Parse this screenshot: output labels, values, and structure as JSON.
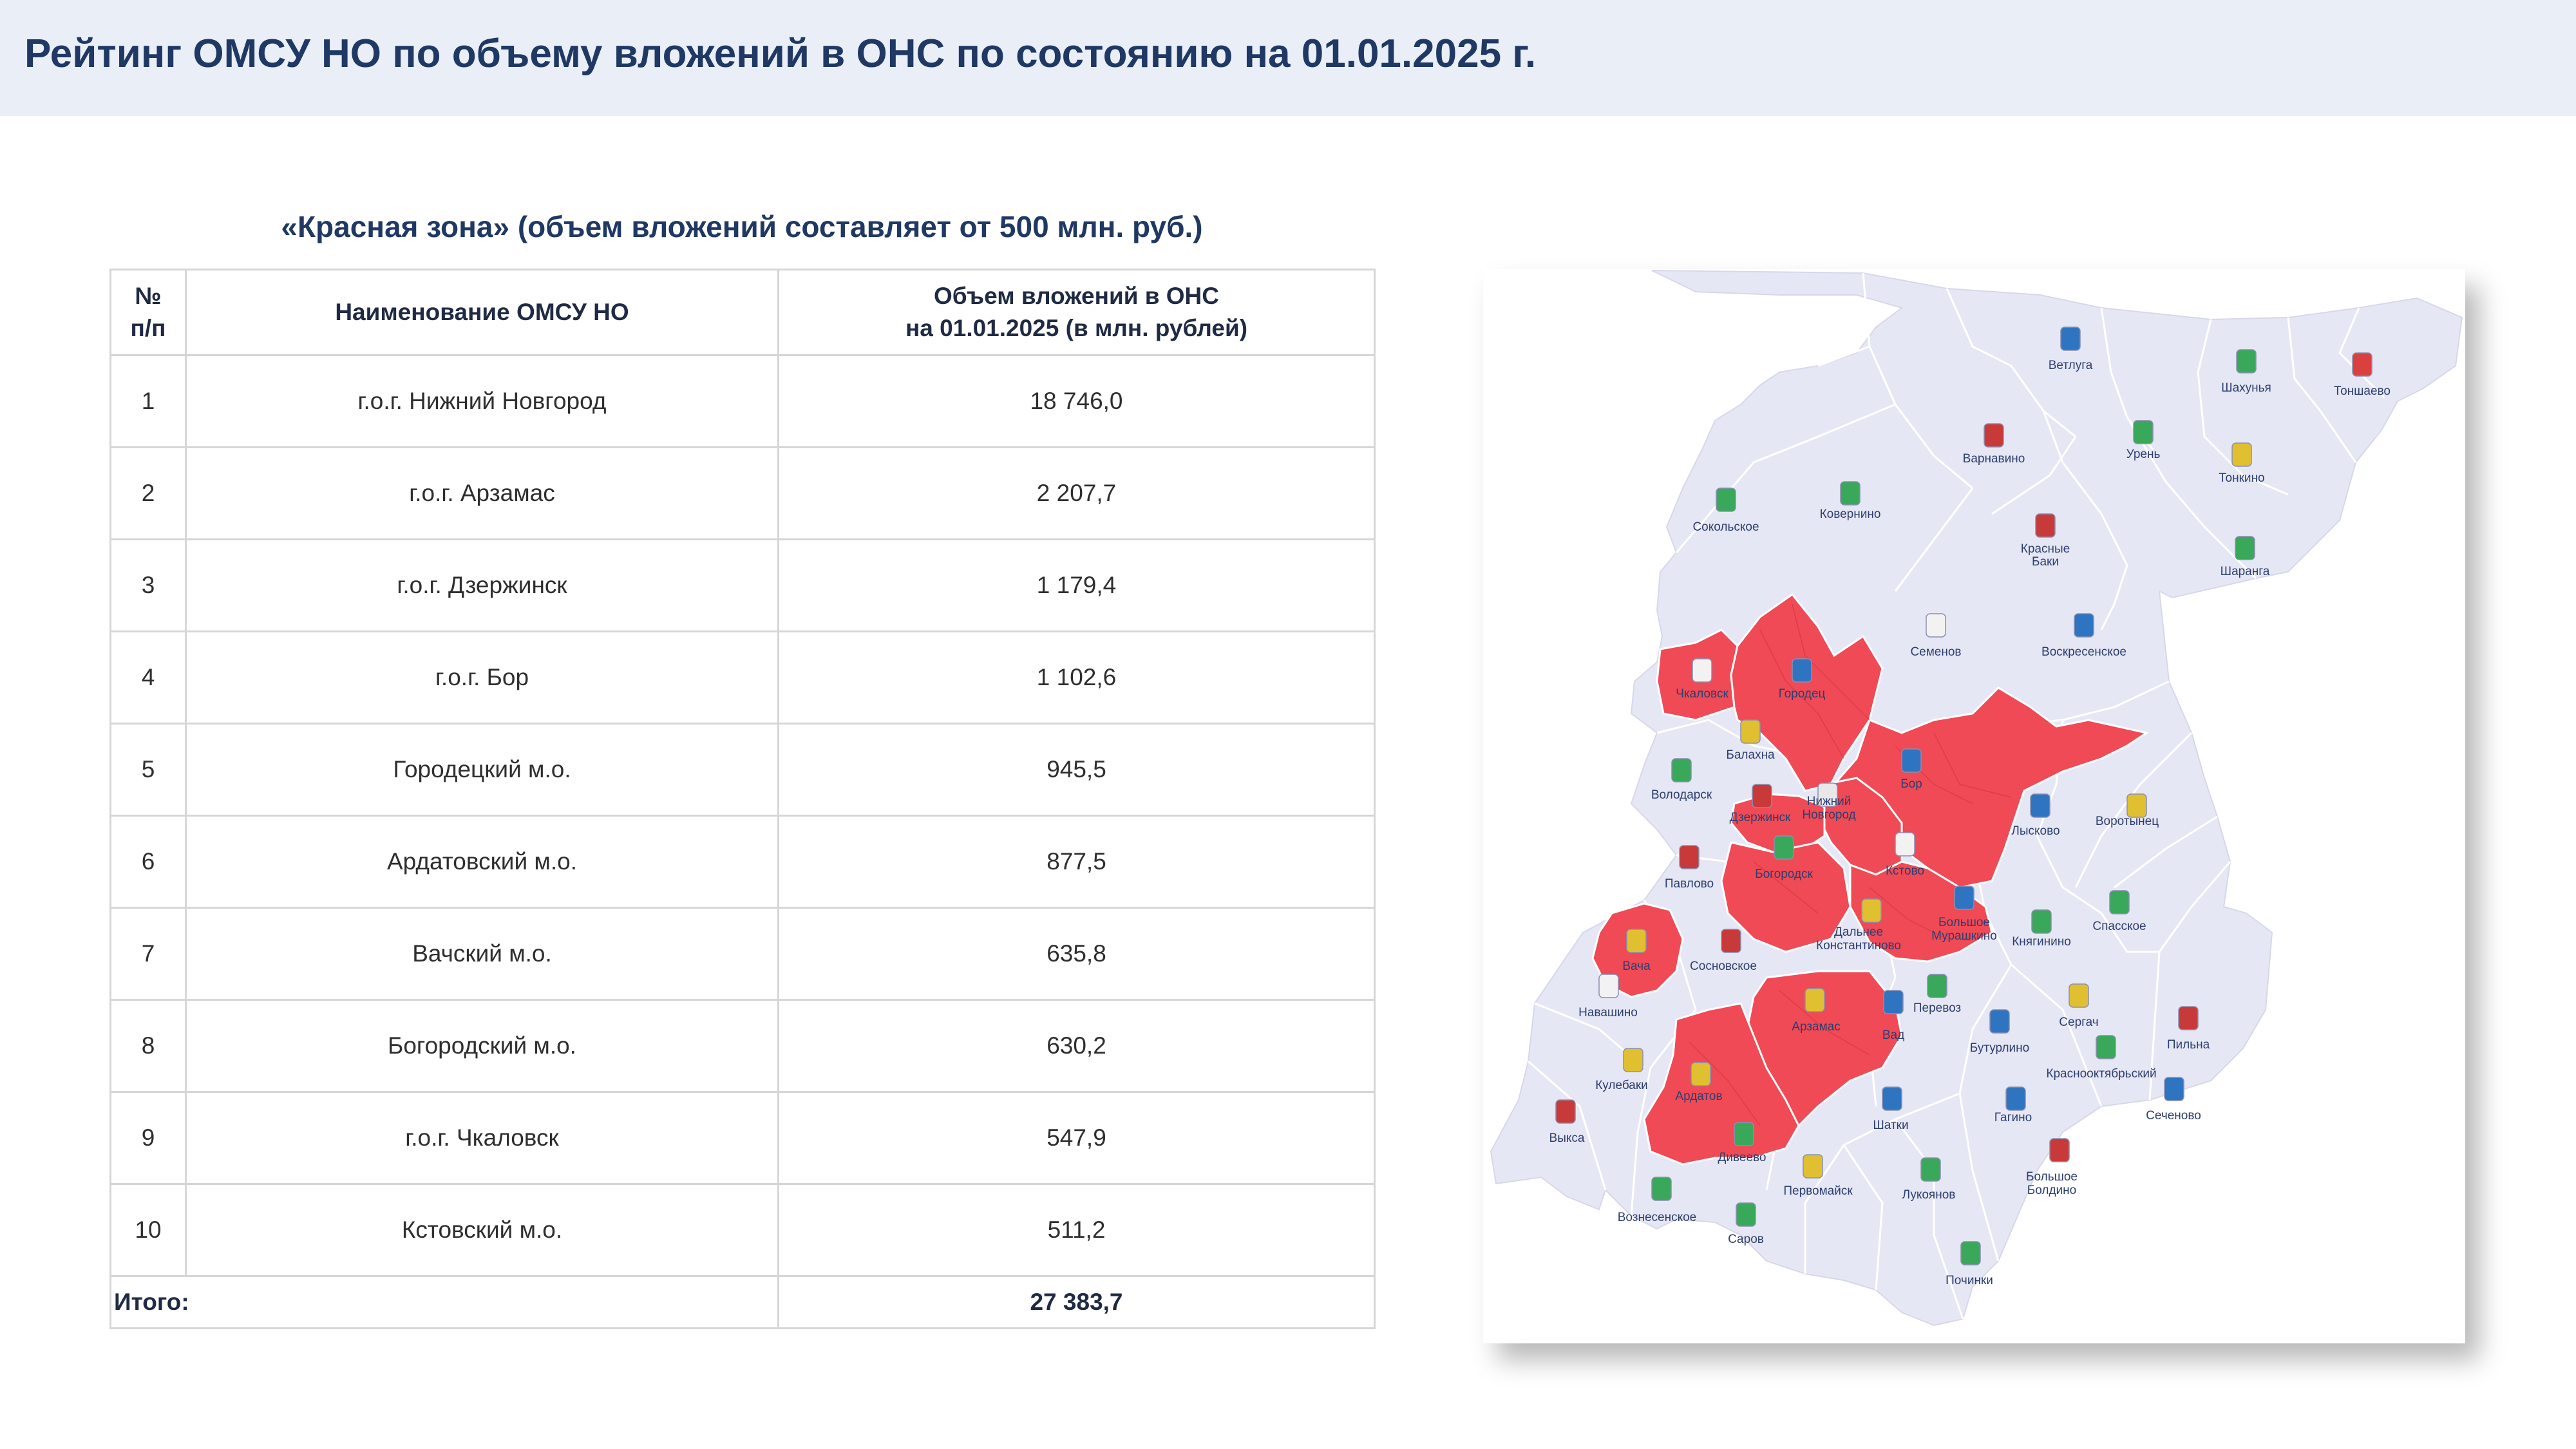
{
  "header": {
    "title": "Рейтинг ОМСУ НО по объему вложений в ОНС по состоянию на 01.01.2025 г."
  },
  "table": {
    "subtitle": "«Красная зона» (объем вложений составляет от 500 млн. руб.)",
    "headers": {
      "num_line1": "№",
      "num_line2": "п/п",
      "name": "Наименование ОМСУ НО",
      "volume_line1": "Объем вложений в ОНС",
      "volume_line2": "на 01.01.2025  (в млн. рублей)"
    },
    "rows": [
      {
        "num": "1",
        "name": "г.о.г. Нижний Новгород",
        "value": "18 746,0"
      },
      {
        "num": "2",
        "name": "г.о.г. Арзамас",
        "value": "2 207,7"
      },
      {
        "num": "3",
        "name": "г.о.г. Дзержинск",
        "value": "1 179,4"
      },
      {
        "num": "4",
        "name": "г.о.г. Бор",
        "value": "1 102,6"
      },
      {
        "num": "5",
        "name": "Городецкий м.о.",
        "value": "945,5"
      },
      {
        "num": "6",
        "name": "Ардатовский м.о.",
        "value": "877,5"
      },
      {
        "num": "7",
        "name": "Вачский м.о.",
        "value": "635,8"
      },
      {
        "num": "8",
        "name": "Богородский м.о.",
        "value": "630,2"
      },
      {
        "num": "9",
        "name": "г.о.г. Чкаловск",
        "value": "547,9"
      },
      {
        "num": "10",
        "name": "Кстовский м.о.",
        "value": "511,2"
      }
    ],
    "total_label": "Итого:",
    "total_value": "27 383,7"
  },
  "map": {
    "colors": {
      "red_zone": "#ef4a55",
      "other": "#e6e7f4",
      "border": "#ffffff",
      "label": "#2c3e70"
    },
    "labels": {
      "vetluga": "Ветлуга",
      "shakhunya": "Шахунья",
      "tonshaevo": "Тоншаево",
      "varnavino": "Варнавино",
      "uren": "Урень",
      "tonkino": "Тонкино",
      "sokolskoe": "Сокольское",
      "kovernino": "Ковернино",
      "krasnye_baki_1": "Красные",
      "krasnye_baki_2": "Баки",
      "sharanga": "Шаранга",
      "semenov": "Семенов",
      "voskresenskoe": "Воскресенское",
      "chkalovsk": "Чкаловск",
      "gorodets": "Городец",
      "balakhna": "Балахна",
      "volodarsk": "Володарск",
      "dzerzhinsk": "Дзержинск",
      "nn_1": "Нижний",
      "nn_2": "Новгород",
      "bor": "Бор",
      "vorotynets": "Воротынец",
      "lyskovo": "Лысково",
      "pavlovo": "Павлово",
      "bogorodsk": "Богородск",
      "kstovo": "Кстово",
      "bolshoe_murashkino_1": "Большое",
      "bolshoe_murashkino_2": "Мурашкино",
      "knyaginino": "Княгинино",
      "spasskoe": "Спасское",
      "vacha": "Вача",
      "sosnovskoe": "Сосновское",
      "dalnee_k_1": "Дальнее",
      "dalnee_k_2": "Константиново",
      "navashino": "Навашино",
      "arzamas": "Арзамас",
      "vad": "Вад",
      "perevoz": "Перевоз",
      "buturlino": "Бутурлино",
      "sergach": "Сергач",
      "pilna": "Пильна",
      "kulebaki": "Кулебаки",
      "krasnooktyabrsky": "Краснооктябрьский",
      "ardatov": "Ардатов",
      "vyksa": "Выкса",
      "shatki": "Шатки",
      "gagino": "Гагино",
      "sechenovo": "Сеченово",
      "diveevo": "Дивеево",
      "pervomaysk": "Первомайск",
      "lukoyanov": "Лукоянов",
      "bolshoe_boldino_1": "Большое",
      "bolshoe_boldino_2": "Болдино",
      "voznesenskoe": "Вознесенское",
      "sarov": "Саров",
      "pochinki": "Починки"
    }
  }
}
